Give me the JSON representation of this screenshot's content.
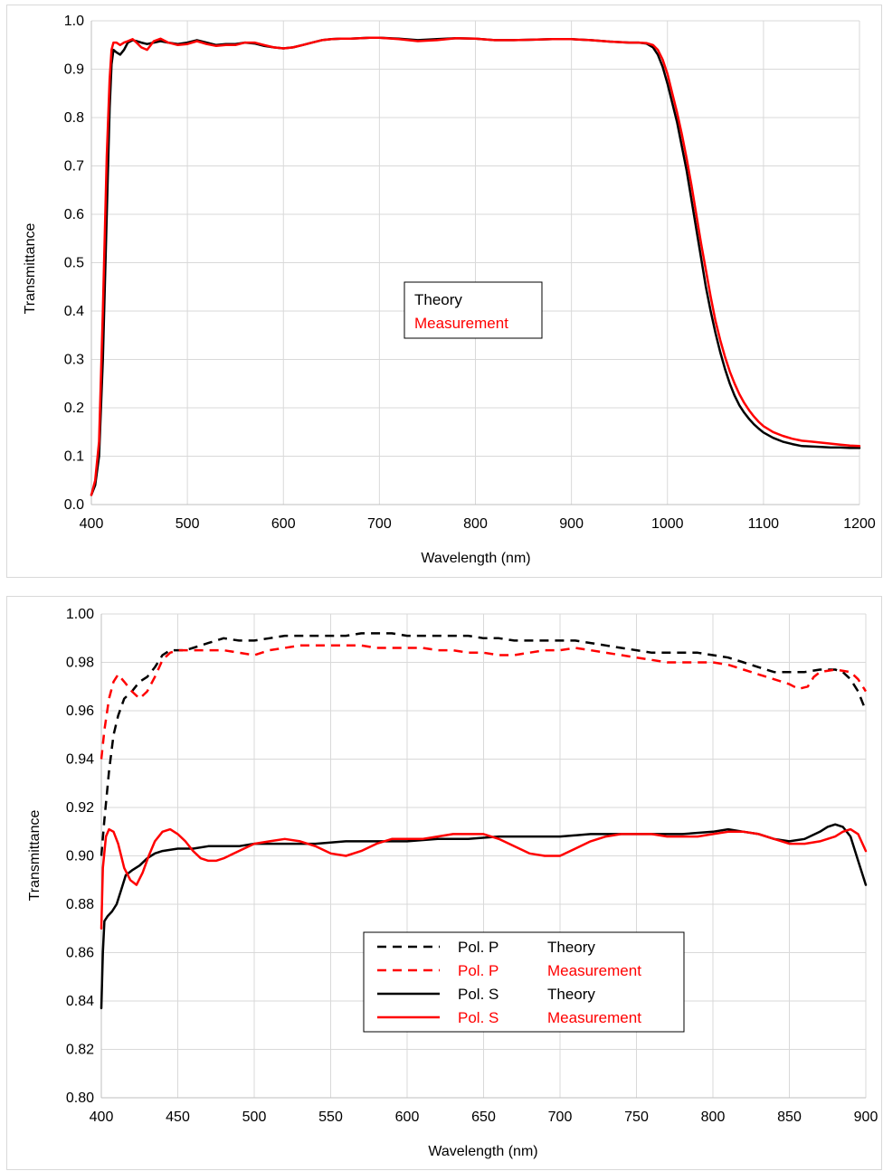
{
  "chart_data": [
    {
      "type": "line",
      "xlabel": "Wavelength (nm)",
      "ylabel": "Transmittance",
      "xlim": [
        400,
        1200
      ],
      "ylim": [
        0.0,
        1.0
      ],
      "xticks": [
        "400",
        "500",
        "600",
        "700",
        "800",
        "900",
        "1000",
        "1100",
        "1200"
      ],
      "yticks": [
        "0.0",
        "0.1",
        "0.2",
        "0.3",
        "0.4",
        "0.5",
        "0.6",
        "0.7",
        "0.8",
        "0.9",
        "1.0"
      ],
      "grid": true,
      "legend_position": "center",
      "series": [
        {
          "name": "Theory",
          "color": "#000000",
          "dash": "solid",
          "x": [
            400,
            404,
            408,
            412,
            416,
            419,
            421,
            423,
            426,
            430,
            434,
            438,
            443,
            447,
            452,
            458,
            465,
            472,
            480,
            490,
            500,
            510,
            520,
            530,
            540,
            550,
            560,
            570,
            580,
            590,
            600,
            610,
            620,
            630,
            640,
            650,
            660,
            670,
            680,
            690,
            700,
            720,
            740,
            760,
            780,
            800,
            820,
            840,
            860,
            880,
            900,
            920,
            940,
            960,
            970,
            978,
            985,
            990,
            995,
            1000,
            1005,
            1010,
            1015,
            1020,
            1025,
            1030,
            1035,
            1040,
            1045,
            1050,
            1055,
            1060,
            1065,
            1070,
            1075,
            1080,
            1085,
            1090,
            1095,
            1100,
            1110,
            1120,
            1130,
            1140,
            1150,
            1160,
            1170,
            1180,
            1190,
            1200
          ],
          "y": [
            0.02,
            0.04,
            0.1,
            0.3,
            0.6,
            0.82,
            0.91,
            0.94,
            0.935,
            0.93,
            0.94,
            0.955,
            0.96,
            0.958,
            0.955,
            0.952,
            0.955,
            0.958,
            0.955,
            0.952,
            0.955,
            0.96,
            0.955,
            0.95,
            0.952,
            0.952,
            0.955,
            0.953,
            0.948,
            0.945,
            0.943,
            0.945,
            0.95,
            0.955,
            0.96,
            0.962,
            0.963,
            0.963,
            0.964,
            0.965,
            0.965,
            0.963,
            0.96,
            0.962,
            0.964,
            0.963,
            0.96,
            0.96,
            0.961,
            0.962,
            0.962,
            0.96,
            0.957,
            0.955,
            0.955,
            0.953,
            0.945,
            0.93,
            0.905,
            0.87,
            0.83,
            0.79,
            0.74,
            0.69,
            0.63,
            0.57,
            0.51,
            0.45,
            0.4,
            0.355,
            0.315,
            0.28,
            0.25,
            0.225,
            0.205,
            0.19,
            0.177,
            0.166,
            0.157,
            0.149,
            0.138,
            0.13,
            0.125,
            0.121,
            0.12,
            0.119,
            0.118,
            0.118,
            0.117,
            0.117
          ]
        },
        {
          "name": "Measurement",
          "color": "#ff0000",
          "dash": "solid",
          "x": [
            400,
            404,
            408,
            412,
            416,
            419,
            421,
            423,
            426,
            430,
            434,
            438,
            443,
            447,
            452,
            458,
            465,
            472,
            480,
            490,
            500,
            510,
            520,
            530,
            540,
            550,
            560,
            570,
            580,
            590,
            600,
            610,
            620,
            630,
            640,
            650,
            660,
            670,
            680,
            690,
            700,
            720,
            740,
            760,
            780,
            800,
            820,
            840,
            860,
            880,
            900,
            920,
            940,
            960,
            970,
            978,
            985,
            990,
            995,
            1000,
            1005,
            1010,
            1015,
            1020,
            1025,
            1030,
            1035,
            1040,
            1045,
            1050,
            1055,
            1060,
            1065,
            1070,
            1075,
            1080,
            1085,
            1090,
            1095,
            1100,
            1110,
            1120,
            1130,
            1140,
            1150,
            1160,
            1170,
            1180,
            1190,
            1200
          ],
          "y": [
            0.02,
            0.05,
            0.13,
            0.4,
            0.72,
            0.88,
            0.94,
            0.955,
            0.955,
            0.95,
            0.955,
            0.958,
            0.962,
            0.955,
            0.945,
            0.94,
            0.958,
            0.963,
            0.955,
            0.95,
            0.952,
            0.958,
            0.952,
            0.948,
            0.95,
            0.95,
            0.955,
            0.955,
            0.95,
            0.945,
            0.943,
            0.945,
            0.95,
            0.955,
            0.96,
            0.962,
            0.963,
            0.963,
            0.964,
            0.965,
            0.965,
            0.962,
            0.958,
            0.96,
            0.964,
            0.963,
            0.96,
            0.96,
            0.961,
            0.962,
            0.962,
            0.96,
            0.957,
            0.955,
            0.955,
            0.954,
            0.95,
            0.94,
            0.92,
            0.89,
            0.85,
            0.81,
            0.765,
            0.715,
            0.66,
            0.6,
            0.54,
            0.485,
            0.43,
            0.38,
            0.34,
            0.305,
            0.275,
            0.25,
            0.228,
            0.21,
            0.195,
            0.182,
            0.171,
            0.162,
            0.15,
            0.142,
            0.136,
            0.132,
            0.13,
            0.128,
            0.126,
            0.124,
            0.122,
            0.121
          ]
        }
      ],
      "legend": [
        {
          "label": "Theory",
          "color": "#000000"
        },
        {
          "label": "Measurement",
          "color": "#ff0000"
        }
      ]
    },
    {
      "type": "line",
      "xlabel": "Wavelength (nm)",
      "ylabel": "Transmittance",
      "xlim": [
        400,
        900
      ],
      "ylim": [
        0.8,
        1.0
      ],
      "xticks": [
        "400",
        "450",
        "500",
        "550",
        "600",
        "650",
        "700",
        "750",
        "800",
        "850",
        "900"
      ],
      "yticks": [
        "0.80",
        "0.82",
        "0.84",
        "0.86",
        "0.88",
        "0.90",
        "0.92",
        "0.94",
        "0.96",
        "0.98",
        "1.00"
      ],
      "grid": true,
      "legend_position": "center-bottom",
      "series": [
        {
          "name": "Pol. P Theory",
          "color": "#000000",
          "dash": "dashed",
          "x": [
            400,
            402,
            405,
            408,
            411,
            415,
            420,
            425,
            430,
            435,
            440,
            445,
            450,
            455,
            460,
            470,
            480,
            490,
            500,
            510,
            520,
            530,
            540,
            550,
            560,
            570,
            580,
            590,
            600,
            610,
            620,
            630,
            640,
            650,
            660,
            670,
            680,
            690,
            700,
            710,
            720,
            730,
            740,
            750,
            760,
            770,
            780,
            790,
            800,
            810,
            820,
            830,
            840,
            850,
            860,
            870,
            880,
            885,
            890,
            895,
            900
          ],
          "y": [
            0.9,
            0.915,
            0.935,
            0.95,
            0.958,
            0.965,
            0.968,
            0.972,
            0.974,
            0.978,
            0.983,
            0.985,
            0.985,
            0.985,
            0.986,
            0.988,
            0.99,
            0.989,
            0.989,
            0.99,
            0.991,
            0.991,
            0.991,
            0.991,
            0.991,
            0.992,
            0.992,
            0.992,
            0.991,
            0.991,
            0.991,
            0.991,
            0.991,
            0.99,
            0.99,
            0.989,
            0.989,
            0.989,
            0.989,
            0.989,
            0.988,
            0.987,
            0.986,
            0.985,
            0.984,
            0.984,
            0.984,
            0.984,
            0.983,
            0.982,
            0.98,
            0.978,
            0.976,
            0.976,
            0.976,
            0.977,
            0.977,
            0.976,
            0.973,
            0.968,
            0.96
          ]
        },
        {
          "name": "Pol. P Measurement",
          "color": "#ff0000",
          "dash": "dashed",
          "x": [
            400,
            402,
            405,
            408,
            411,
            415,
            420,
            425,
            430,
            435,
            440,
            445,
            450,
            460,
            470,
            480,
            490,
            500,
            510,
            520,
            530,
            540,
            550,
            560,
            570,
            580,
            590,
            600,
            610,
            620,
            630,
            640,
            650,
            660,
            670,
            680,
            690,
            700,
            710,
            720,
            730,
            740,
            750,
            760,
            770,
            780,
            790,
            800,
            810,
            820,
            830,
            840,
            850,
            856,
            862,
            866,
            870,
            880,
            890,
            895,
            900
          ],
          "y": [
            0.94,
            0.952,
            0.965,
            0.972,
            0.975,
            0.972,
            0.968,
            0.965,
            0.968,
            0.974,
            0.981,
            0.984,
            0.985,
            0.985,
            0.985,
            0.985,
            0.984,
            0.983,
            0.985,
            0.986,
            0.987,
            0.987,
            0.987,
            0.987,
            0.987,
            0.986,
            0.986,
            0.986,
            0.986,
            0.985,
            0.985,
            0.984,
            0.984,
            0.983,
            0.983,
            0.984,
            0.985,
            0.985,
            0.986,
            0.985,
            0.984,
            0.983,
            0.982,
            0.981,
            0.98,
            0.98,
            0.98,
            0.98,
            0.979,
            0.977,
            0.975,
            0.973,
            0.971,
            0.969,
            0.97,
            0.974,
            0.976,
            0.977,
            0.976,
            0.973,
            0.968
          ]
        },
        {
          "name": "Pol. S Theory",
          "color": "#000000",
          "dash": "solid",
          "x": [
            400,
            401,
            402,
            404,
            407,
            410,
            413,
            416,
            420,
            425,
            430,
            435,
            440,
            450,
            460,
            470,
            480,
            490,
            500,
            520,
            540,
            560,
            580,
            600,
            620,
            640,
            660,
            680,
            700,
            720,
            740,
            760,
            780,
            800,
            810,
            820,
            830,
            840,
            850,
            860,
            870,
            875,
            880,
            885,
            890,
            895,
            900
          ],
          "y": [
            0.837,
            0.86,
            0.873,
            0.875,
            0.877,
            0.88,
            0.886,
            0.892,
            0.894,
            0.896,
            0.899,
            0.901,
            0.902,
            0.903,
            0.903,
            0.904,
            0.904,
            0.904,
            0.905,
            0.905,
            0.905,
            0.906,
            0.906,
            0.906,
            0.907,
            0.907,
            0.908,
            0.908,
            0.908,
            0.909,
            0.909,
            0.909,
            0.909,
            0.91,
            0.911,
            0.91,
            0.909,
            0.907,
            0.906,
            0.907,
            0.91,
            0.912,
            0.913,
            0.912,
            0.908,
            0.898,
            0.888
          ]
        },
        {
          "name": "Pol. S Measurement",
          "color": "#ff0000",
          "dash": "solid",
          "x": [
            400,
            401,
            403,
            405,
            408,
            411,
            415,
            419,
            423,
            427,
            431,
            435,
            440,
            445,
            450,
            455,
            460,
            465,
            470,
            475,
            480,
            490,
            500,
            510,
            520,
            530,
            540,
            550,
            560,
            570,
            580,
            590,
            600,
            610,
            620,
            630,
            640,
            650,
            660,
            670,
            680,
            690,
            700,
            710,
            720,
            730,
            740,
            750,
            760,
            770,
            780,
            790,
            800,
            810,
            820,
            830,
            840,
            850,
            855,
            860,
            870,
            880,
            885,
            890,
            895,
            900
          ],
          "y": [
            0.87,
            0.895,
            0.908,
            0.911,
            0.91,
            0.905,
            0.895,
            0.89,
            0.888,
            0.893,
            0.9,
            0.906,
            0.91,
            0.911,
            0.909,
            0.906,
            0.902,
            0.899,
            0.898,
            0.898,
            0.899,
            0.902,
            0.905,
            0.906,
            0.907,
            0.906,
            0.904,
            0.901,
            0.9,
            0.902,
            0.905,
            0.907,
            0.907,
            0.907,
            0.908,
            0.909,
            0.909,
            0.909,
            0.907,
            0.904,
            0.901,
            0.9,
            0.9,
            0.903,
            0.906,
            0.908,
            0.909,
            0.909,
            0.909,
            0.908,
            0.908,
            0.908,
            0.909,
            0.91,
            0.91,
            0.909,
            0.907,
            0.905,
            0.905,
            0.905,
            0.906,
            0.908,
            0.91,
            0.911,
            0.909,
            0.902
          ]
        }
      ],
      "legend": [
        {
          "label": "Pol. P",
          "desc": "Theory",
          "color": "#000000",
          "dash": "dashed"
        },
        {
          "label": "Pol. P",
          "desc": "Measurement",
          "color": "#ff0000",
          "dash": "dashed"
        },
        {
          "label": "Pol. S",
          "desc": "Theory",
          "color": "#000000",
          "dash": "solid"
        },
        {
          "label": "Pol. S",
          "desc": "Measurement",
          "color": "#ff0000",
          "dash": "solid"
        }
      ]
    }
  ]
}
